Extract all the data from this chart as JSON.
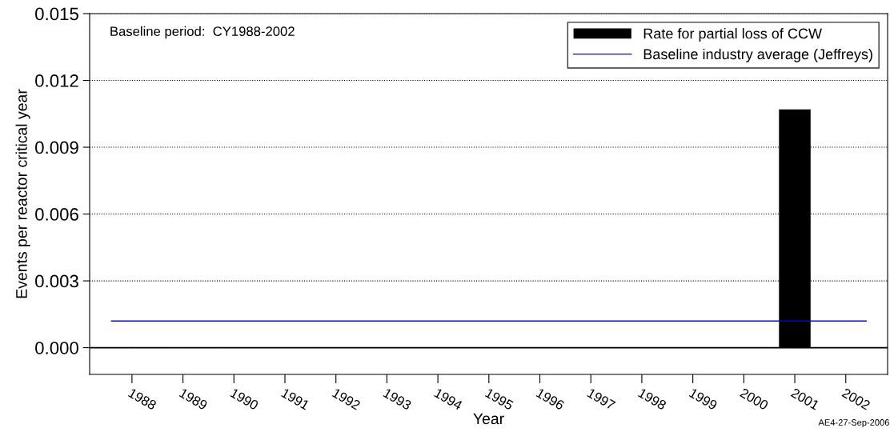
{
  "chart_data": {
    "type": "bar",
    "xlabel": "Year",
    "ylabel": "Events per reactor critical year",
    "categories": [
      "1988",
      "1989",
      "1990",
      "1991",
      "1992",
      "1993",
      "1994",
      "1995",
      "1996",
      "1997",
      "1998",
      "1999",
      "2000",
      "2001",
      "2002"
    ],
    "series": [
      {
        "name": "Rate for partial loss of CCW",
        "color": "#000000",
        "values": [
          0,
          0,
          0,
          0,
          0,
          0,
          0,
          0,
          0,
          0,
          0,
          0,
          0,
          0.0107,
          0
        ]
      }
    ],
    "ref_lines": [
      {
        "axis": "y",
        "value": 0.0012,
        "label": "Baseline industry average (Jeffreys)",
        "color": "#0000ff",
        "line_style": "solid"
      },
      {
        "axis": "y",
        "value": 0,
        "color": "#000000",
        "line_style": "solid"
      }
    ],
    "ylim": [
      -0.0012,
      0.015
    ],
    "yticks": [
      {
        "value": 0,
        "label": "0.000"
      },
      {
        "value": 0.003,
        "label": "0.003"
      },
      {
        "value": 0.006,
        "label": "0.006"
      },
      {
        "value": 0.009,
        "label": "0.009"
      },
      {
        "value": 0.012,
        "label": "0.012"
      },
      {
        "value": 0.015,
        "label": "0.015"
      }
    ],
    "grid": "y",
    "legend": "top right",
    "annotations": [
      "Baseline period:  CY1988-2002",
      "AE4-27-Sep-2006"
    ]
  }
}
